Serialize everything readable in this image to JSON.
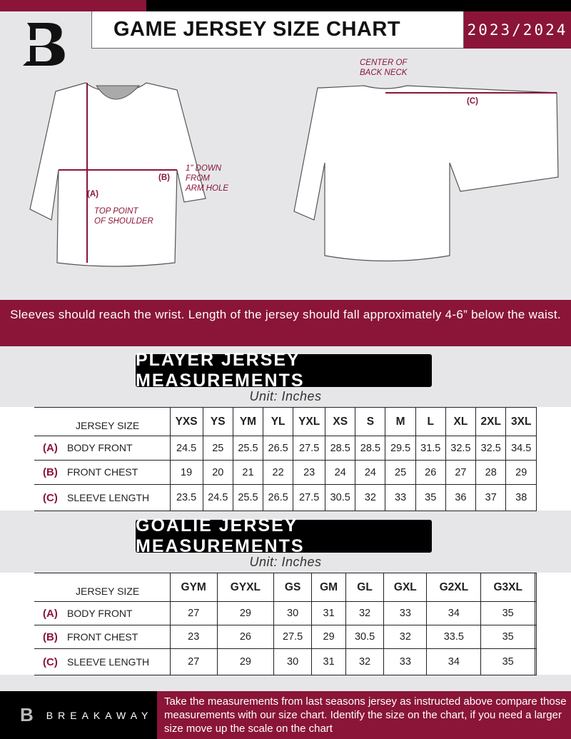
{
  "header": {
    "title": "GAME JERSEY SIZE CHART",
    "season": "2023/2024",
    "logo": "B"
  },
  "diagram": {
    "notes": {
      "a": "(A)",
      "a_text": "TOP POINT\nOF SHOULDER",
      "b": "(B)",
      "b_text": "1\" DOWN\nFROM\nARM HOLE",
      "c": "(C)",
      "c_text": "CENTER OF\nBACK NECK"
    }
  },
  "instructions": "Sleeves should reach the wrist. Length of the jersey should fall approximately 4-6” below the waist.",
  "player": {
    "title": "PLAYER JERSEY MEASUREMENTS",
    "unit": "Unit: Inches",
    "header_label": "JERSEY SIZE",
    "sizes": [
      "YXS",
      "YS",
      "YM",
      "YL",
      "YXL",
      "XS",
      "S",
      "M",
      "L",
      "XL",
      "2XL",
      "3XL"
    ],
    "rows": [
      {
        "key": "(A)",
        "label": "BODY FRONT",
        "values": [
          "24.5",
          "25",
          "25.5",
          "26.5",
          "27.5",
          "28.5",
          "28.5",
          "29.5",
          "31.5",
          "32.5",
          "32.5",
          "34.5"
        ]
      },
      {
        "key": "(B)",
        "label": "FRONT CHEST",
        "values": [
          "19",
          "20",
          "21",
          "22",
          "23",
          "24",
          "24",
          "25",
          "26",
          "27",
          "28",
          "29"
        ]
      },
      {
        "key": "(C)",
        "label": "SLEEVE LENGTH",
        "values": [
          "23.5",
          "24.5",
          "25.5",
          "26.5",
          "27.5",
          "30.5",
          "32",
          "33",
          "35",
          "36",
          "37",
          "38"
        ]
      }
    ]
  },
  "goalie": {
    "title": "GOALIE JERSEY MEASUREMENTS",
    "unit": "Unit: Inches",
    "header_label": "JERSEY SIZE",
    "sizes": [
      "GYM",
      "GYXL",
      "GS",
      "GM",
      "GL",
      "GXL",
      "G2XL",
      "G3XL",
      ""
    ],
    "rows": [
      {
        "key": "(A)",
        "label": "BODY FRONT",
        "values": [
          "27",
          "29",
          "30",
          "31",
          "32",
          "33",
          "34",
          "35",
          ""
        ]
      },
      {
        "key": "(B)",
        "label": "FRONT CHEST",
        "values": [
          "23",
          "26",
          "27.5",
          "29",
          "30.5",
          "32",
          "33.5",
          "35",
          ""
        ]
      },
      {
        "key": "(C)",
        "label": "SLEEVE LENGTH",
        "values": [
          "27",
          "29",
          "30",
          "31",
          "32",
          "33",
          "34",
          "35",
          ""
        ]
      }
    ]
  },
  "footer": {
    "brand": "BREAKAWAY",
    "text": "Take the measurements from last seasons jersey as instructed above compare those measurements  with our size chart. Identify the size on the chart, if you need a larger size move up the scale on the chart"
  },
  "colors": {
    "accent": "#8a1538",
    "dark": "#000000",
    "background": "#e6e6e8"
  }
}
